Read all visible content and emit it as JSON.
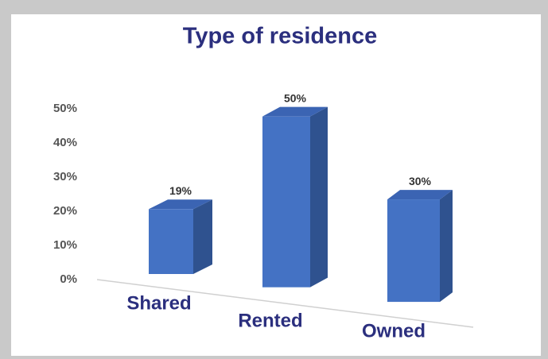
{
  "chart_data": {
    "type": "bar",
    "title": "Type of residence",
    "categories": [
      "Shared",
      "Rented",
      "Owned"
    ],
    "values": [
      19,
      50,
      30
    ],
    "value_labels": [
      "19%",
      "50%",
      "30%"
    ],
    "color": "#4472c4",
    "ylim": [
      0,
      50
    ],
    "yticks": [
      {
        "value": 0,
        "label": "0%"
      },
      {
        "value": 10,
        "label": "10%"
      },
      {
        "value": 20,
        "label": "20%"
      },
      {
        "value": 30,
        "label": "30%"
      },
      {
        "value": 40,
        "label": "40%"
      },
      {
        "value": 50,
        "label": "50%"
      }
    ],
    "grid": false
  }
}
